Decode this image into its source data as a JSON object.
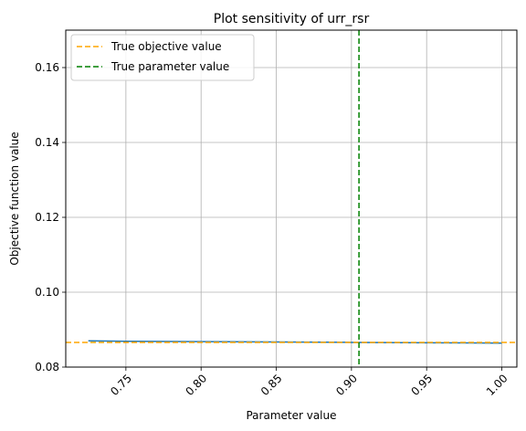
{
  "chart_data": {
    "type": "line",
    "title": "Plot sensitivity of urr_rsr",
    "xlabel": "Parameter value",
    "ylabel": "Objective function value",
    "xlim": [
      0.71,
      1.01
    ],
    "ylim": [
      0.08,
      0.17
    ],
    "xticks": [
      0.75,
      0.8,
      0.85,
      0.9,
      0.95,
      1.0
    ],
    "xtick_labels": [
      "0.75",
      "0.80",
      "0.85",
      "0.90",
      "0.95",
      "1.00"
    ],
    "xtick_rotation_deg": 45,
    "yticks": [
      0.08,
      0.1,
      0.12,
      0.14,
      0.16
    ],
    "ytick_labels": [
      "0.08",
      "0.10",
      "0.12",
      "0.14",
      "0.16"
    ],
    "grid": true,
    "legend_position": "top-left",
    "series": [
      {
        "name": "",
        "color": "#1f77b4",
        "style": "solid",
        "x": [
          0.725,
          0.75,
          0.8,
          0.85,
          0.9,
          0.95,
          1.0
        ],
        "y": [
          0.087,
          0.0869,
          0.0868,
          0.0867,
          0.0866,
          0.0865,
          0.0864
        ]
      }
    ],
    "reference_lines": [
      {
        "name": "True objective value",
        "orientation": "horizontal",
        "value": 0.0866,
        "color": "#ffa500",
        "style": "dashed"
      },
      {
        "name": "True parameter value",
        "orientation": "vertical",
        "value": 0.905,
        "color": "#008000",
        "style": "dashed"
      }
    ]
  }
}
